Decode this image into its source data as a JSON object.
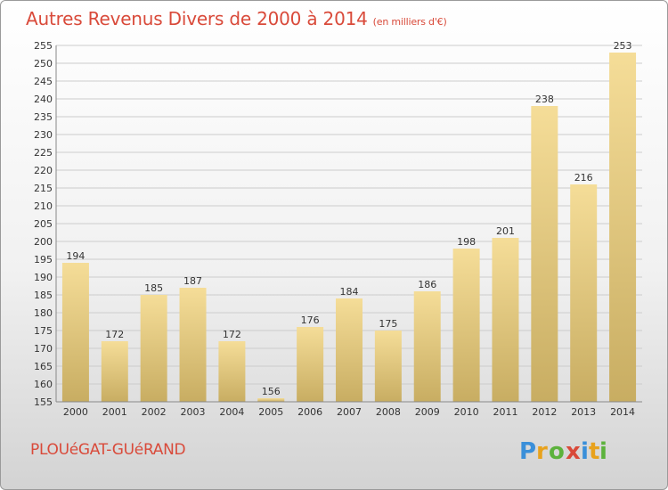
{
  "header": {
    "title": "Autres Revenus Divers de 2000 à 2014",
    "subtitle": "(en milliers d'€)"
  },
  "footer": {
    "city": "PLOUéGAT-GUéRAND",
    "logo_text": "Proxiti"
  },
  "colors": {
    "title": "#d94a3a",
    "bar_light": "#f5dd98",
    "bar_dark": "#c8ad62",
    "grid": "#cccccc",
    "axis_text": "#333333"
  },
  "chart_data": {
    "type": "bar",
    "categories": [
      "2000",
      "2001",
      "2002",
      "2003",
      "2004",
      "2005",
      "2006",
      "2007",
      "2008",
      "2009",
      "2010",
      "2011",
      "2012",
      "2013",
      "2014"
    ],
    "values": [
      194,
      172,
      185,
      187,
      172,
      156,
      176,
      184,
      175,
      186,
      198,
      201,
      238,
      216,
      253
    ],
    "ylim": [
      155,
      255
    ],
    "yticks": [
      155,
      160,
      165,
      170,
      175,
      180,
      185,
      190,
      195,
      200,
      205,
      210,
      215,
      220,
      225,
      230,
      235,
      240,
      245,
      250,
      255
    ],
    "grid": true,
    "data_labels": true
  }
}
